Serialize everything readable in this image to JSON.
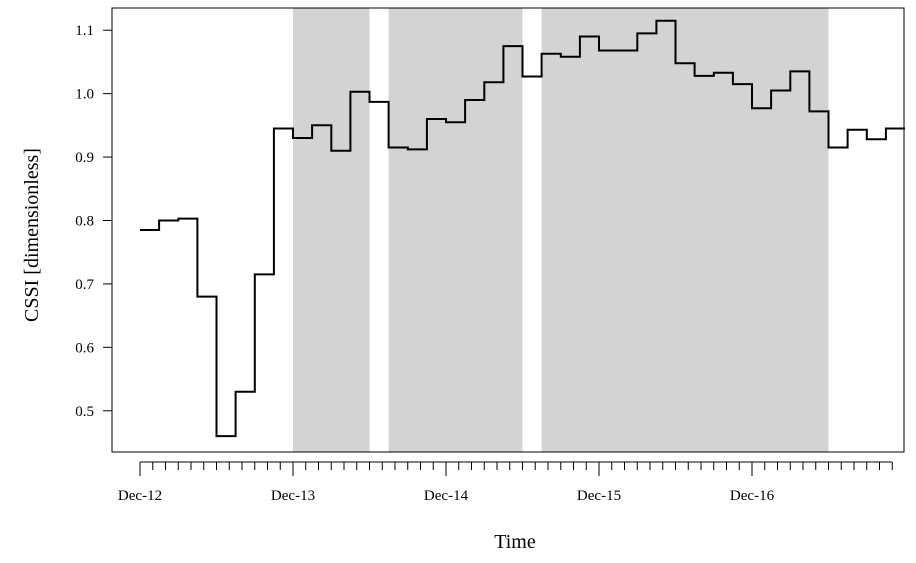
{
  "chart_data": {
    "type": "line",
    "step": true,
    "xlabel": "Time",
    "ylabel": "CSSI [dimensionless]",
    "x_tick_labels": [
      "Dec-12",
      "Dec-13",
      "Dec-14",
      "Dec-15",
      "Dec-16"
    ],
    "x_tick_positions": [
      0,
      12,
      24,
      36,
      48
    ],
    "x_minor_ticks_every": 1,
    "xlim": [
      0,
      59
    ],
    "ylim": [
      0.435,
      1.135
    ],
    "y_ticks": [
      0.5,
      0.6,
      0.7,
      0.8,
      0.9,
      1.0,
      1.1
    ],
    "y_tick_labels": [
      "0.5",
      "0.6",
      "0.7",
      "0.8",
      "0.9",
      "1.0",
      "1.1"
    ],
    "grid": false,
    "series": [
      {
        "x": [
          0,
          1.5,
          3,
          4.5,
          6,
          7.5,
          9,
          10.5,
          12,
          13.5,
          15,
          16.5,
          18,
          19.5,
          21,
          22.5,
          24,
          25.5,
          27,
          28.5,
          30,
          31.5,
          33,
          34.5,
          36,
          37.5,
          39,
          40.5,
          42,
          43.5,
          45,
          46.5,
          48,
          49.5,
          51,
          52.5,
          54,
          55.5,
          57,
          58.5
        ],
        "y": [
          0.785,
          0.8,
          0.803,
          0.68,
          0.46,
          0.53,
          0.715,
          0.945,
          0.93,
          0.95,
          0.91,
          1.003,
          0.987,
          0.915,
          0.912,
          0.96,
          0.955,
          0.99,
          1.018,
          1.075,
          1.027,
          1.063,
          1.058,
          1.09,
          1.068,
          1.068,
          1.095,
          1.115,
          1.048,
          1.028,
          1.033,
          1.015,
          0.977,
          1.005,
          1.035,
          0.972,
          0.915,
          0.943,
          0.928,
          0.945
        ],
        "color": "#000000"
      }
    ],
    "shaded_regions": [
      {
        "x_start": 12,
        "x_end": 18,
        "color": "#d3d3d3"
      },
      {
        "x_start": 19.5,
        "x_end": 30,
        "color": "#d3d3d3"
      },
      {
        "x_start": 31.5,
        "x_end": 54,
        "color": "#d3d3d3"
      }
    ]
  }
}
